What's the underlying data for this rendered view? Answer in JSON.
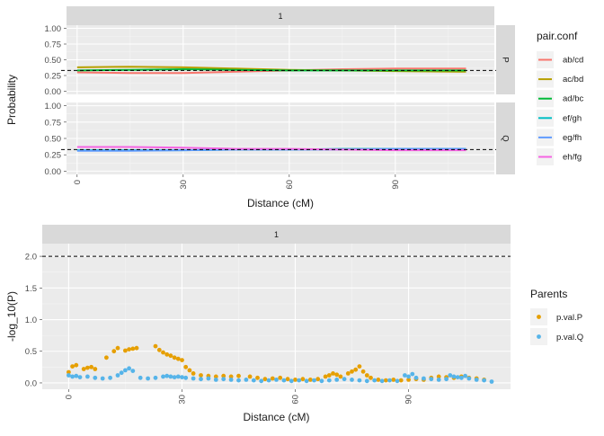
{
  "chart_data": [
    {
      "type": "line",
      "strip_label": "1",
      "facet_labels": [
        "P",
        "Q"
      ],
      "xlabel": "Distance (cM)",
      "ylabel": "Probability",
      "xlim": [
        -3,
        118
      ],
      "ylim": [
        -0.05,
        1.05
      ],
      "x_ticks": [
        0,
        30,
        60,
        90
      ],
      "y_ticks": [
        0.0,
        0.25,
        0.5,
        0.75,
        1.0
      ],
      "y_tick_labels": [
        "0.00",
        "0.25",
        "0.50",
        "0.75",
        "1.00"
      ],
      "reference_line": 0.33,
      "legend_title": "pair.conf",
      "legend_position": "right",
      "x": [
        0,
        15,
        30,
        45,
        60,
        75,
        90,
        110
      ],
      "series": [
        {
          "name": "ab/cd",
          "facet": "P",
          "color": "#F8766D",
          "values": [
            0.3,
            0.29,
            0.29,
            0.31,
            0.33,
            0.35,
            0.36,
            0.36
          ]
        },
        {
          "name": "ac/bd",
          "facet": "P",
          "color": "#B79F00",
          "values": [
            0.38,
            0.39,
            0.38,
            0.36,
            0.34,
            0.33,
            0.32,
            0.31
          ]
        },
        {
          "name": "ad/bc",
          "facet": "P",
          "color": "#00BA38",
          "values": [
            0.33,
            0.34,
            0.35,
            0.34,
            0.33,
            0.33,
            0.33,
            0.33
          ]
        },
        {
          "name": "ef/gh",
          "facet": "Q",
          "color": "#00BFC4",
          "values": [
            0.32,
            0.32,
            0.32,
            0.33,
            0.33,
            0.34,
            0.34,
            0.34
          ]
        },
        {
          "name": "eg/fh",
          "facet": "Q",
          "color": "#619CFF",
          "values": [
            0.31,
            0.31,
            0.32,
            0.33,
            0.33,
            0.33,
            0.34,
            0.34
          ]
        },
        {
          "name": "eh/fg",
          "facet": "Q",
          "color": "#F564E3",
          "values": [
            0.37,
            0.37,
            0.36,
            0.34,
            0.34,
            0.33,
            0.32,
            0.32
          ]
        }
      ]
    },
    {
      "type": "scatter",
      "strip_label": "1",
      "xlabel": "Distance (cM)",
      "ylabel": "-log_10(P)",
      "xlim": [
        -7,
        117
      ],
      "ylim": [
        -0.1,
        2.2
      ],
      "x_ticks": [
        0,
        30,
        60,
        90
      ],
      "y_ticks": [
        0.0,
        0.5,
        1.0,
        1.5,
        2.0
      ],
      "y_tick_labels": [
        "0.0",
        "0.5",
        "1.0",
        "1.5",
        "2.0"
      ],
      "reference_line": 2.0,
      "legend_title": "Parents",
      "legend_position": "right",
      "series": [
        {
          "name": "p.val.P",
          "color": "#E69F00",
          "points": [
            [
              0,
              0.17
            ],
            [
              1,
              0.26
            ],
            [
              2,
              0.28
            ],
            [
              4,
              0.22
            ],
            [
              5,
              0.24
            ],
            [
              6,
              0.25
            ],
            [
              7,
              0.22
            ],
            [
              10,
              0.4
            ],
            [
              12,
              0.5
            ],
            [
              13,
              0.55
            ],
            [
              15,
              0.51
            ],
            [
              16,
              0.53
            ],
            [
              17,
              0.54
            ],
            [
              18,
              0.55
            ],
            [
              23,
              0.58
            ],
            [
              24,
              0.52
            ],
            [
              25,
              0.48
            ],
            [
              26,
              0.45
            ],
            [
              27,
              0.43
            ],
            [
              28,
              0.4
            ],
            [
              29,
              0.38
            ],
            [
              30,
              0.36
            ],
            [
              31,
              0.25
            ],
            [
              32,
              0.2
            ],
            [
              33,
              0.15
            ],
            [
              35,
              0.12
            ],
            [
              37,
              0.11
            ],
            [
              39,
              0.1
            ],
            [
              41,
              0.11
            ],
            [
              43,
              0.1
            ],
            [
              45,
              0.11
            ],
            [
              48,
              0.1
            ],
            [
              50,
              0.08
            ],
            [
              52,
              0.06
            ],
            [
              54,
              0.07
            ],
            [
              56,
              0.08
            ],
            [
              58,
              0.06
            ],
            [
              60,
              0.05
            ],
            [
              62,
              0.06
            ],
            [
              64,
              0.05
            ],
            [
              66,
              0.06
            ],
            [
              68,
              0.1
            ],
            [
              69,
              0.12
            ],
            [
              70,
              0.15
            ],
            [
              71,
              0.13
            ],
            [
              72,
              0.1
            ],
            [
              74,
              0.15
            ],
            [
              75,
              0.18
            ],
            [
              76,
              0.21
            ],
            [
              77,
              0.26
            ],
            [
              78,
              0.18
            ],
            [
              79,
              0.12
            ],
            [
              80,
              0.08
            ],
            [
              82,
              0.05
            ],
            [
              84,
              0.04
            ],
            [
              86,
              0.05
            ],
            [
              88,
              0.04
            ],
            [
              90,
              0.05
            ],
            [
              92,
              0.06
            ],
            [
              94,
              0.05
            ],
            [
              96,
              0.08
            ],
            [
              98,
              0.1
            ],
            [
              100,
              0.09
            ],
            [
              102,
              0.08
            ],
            [
              104,
              0.1
            ],
            [
              106,
              0.08
            ],
            [
              108,
              0.07
            ],
            [
              110,
              0.05
            ]
          ]
        },
        {
          "name": "p.val.Q",
          "color": "#56B4E9",
          "points": [
            [
              0,
              0.12
            ],
            [
              1,
              0.1
            ],
            [
              2,
              0.11
            ],
            [
              3,
              0.09
            ],
            [
              5,
              0.1
            ],
            [
              7,
              0.08
            ],
            [
              9,
              0.07
            ],
            [
              11,
              0.08
            ],
            [
              13,
              0.12
            ],
            [
              14,
              0.16
            ],
            [
              15,
              0.2
            ],
            [
              16,
              0.23
            ],
            [
              17,
              0.19
            ],
            [
              19,
              0.08
            ],
            [
              21,
              0.07
            ],
            [
              23,
              0.08
            ],
            [
              25,
              0.1
            ],
            [
              26,
              0.11
            ],
            [
              27,
              0.1
            ],
            [
              28,
              0.09
            ],
            [
              29,
              0.1
            ],
            [
              30,
              0.09
            ],
            [
              31,
              0.08
            ],
            [
              33,
              0.07
            ],
            [
              35,
              0.06
            ],
            [
              37,
              0.07
            ],
            [
              39,
              0.05
            ],
            [
              41,
              0.06
            ],
            [
              43,
              0.05
            ],
            [
              45,
              0.04
            ],
            [
              47,
              0.05
            ],
            [
              49,
              0.04
            ],
            [
              51,
              0.03
            ],
            [
              53,
              0.04
            ],
            [
              55,
              0.05
            ],
            [
              57,
              0.04
            ],
            [
              59,
              0.03
            ],
            [
              61,
              0.04
            ],
            [
              63,
              0.03
            ],
            [
              65,
              0.04
            ],
            [
              67,
              0.03
            ],
            [
              69,
              0.04
            ],
            [
              71,
              0.05
            ],
            [
              73,
              0.06
            ],
            [
              75,
              0.05
            ],
            [
              77,
              0.04
            ],
            [
              79,
              0.03
            ],
            [
              81,
              0.04
            ],
            [
              83,
              0.03
            ],
            [
              85,
              0.04
            ],
            [
              87,
              0.03
            ],
            [
              89,
              0.12
            ],
            [
              90,
              0.1
            ],
            [
              91,
              0.14
            ],
            [
              92,
              0.08
            ],
            [
              94,
              0.07
            ],
            [
              96,
              0.06
            ],
            [
              98,
              0.05
            ],
            [
              100,
              0.06
            ],
            [
              101,
              0.12
            ],
            [
              102,
              0.1
            ],
            [
              103,
              0.09
            ],
            [
              104,
              0.08
            ],
            [
              105,
              0.11
            ],
            [
              106,
              0.07
            ],
            [
              108,
              0.05
            ],
            [
              110,
              0.04
            ],
            [
              112,
              0.02
            ]
          ]
        }
      ]
    }
  ]
}
